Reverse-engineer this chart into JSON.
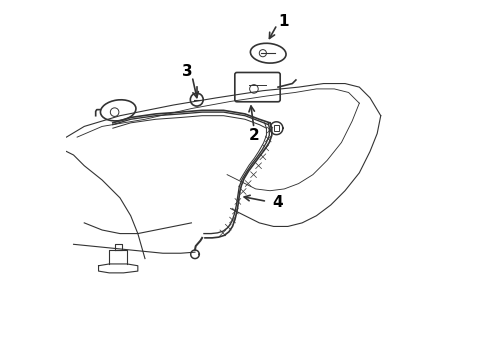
{
  "bg_color": "#ffffff",
  "line_color": "#333333",
  "label_color": "#000000",
  "label_fontsize": 11,
  "label_fontweight": "bold"
}
